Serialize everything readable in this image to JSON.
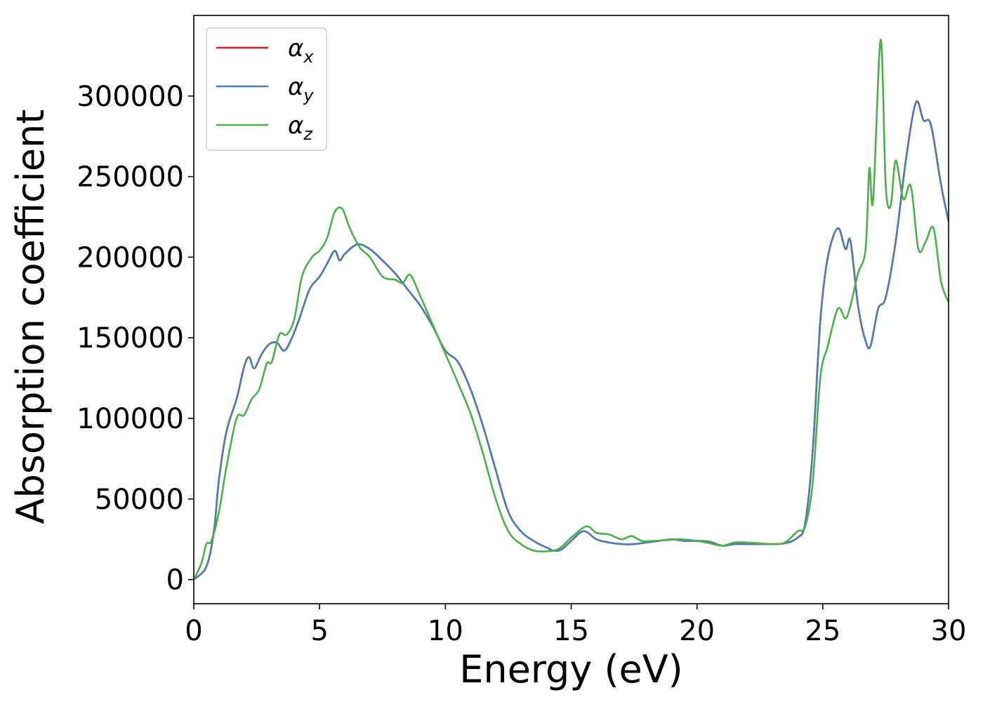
{
  "chart_data": {
    "type": "line",
    "title": "",
    "xlabel": "Energy (eV)",
    "ylabel": "Absorption coefficient",
    "xlim": [
      0,
      30
    ],
    "ylim": [
      -15000,
      350000
    ],
    "xticks": [
      0,
      5,
      10,
      15,
      20,
      25,
      30
    ],
    "yticks": [
      0,
      50000,
      100000,
      150000,
      200000,
      250000,
      300000
    ],
    "grid": false,
    "legend_position": "top-left",
    "series": [
      {
        "name": "αx",
        "legend_symbol": "α",
        "legend_subscript": "x",
        "color": "#e41a1c",
        "x": [
          0,
          0.5,
          0.8,
          1.0,
          1.3,
          1.7,
          2.0,
          2.2,
          2.4,
          2.7,
          3.0,
          3.3,
          3.6,
          3.9,
          4.2,
          4.6,
          5.0,
          5.3,
          5.6,
          5.8,
          6.0,
          6.5,
          7.0,
          7.5,
          8.0,
          8.5,
          9.0,
          9.5,
          10.0,
          10.5,
          11.0,
          11.5,
          12.0,
          12.5,
          13.0,
          13.5,
          14.0,
          14.3,
          14.6,
          15.0,
          15.5,
          16.0,
          16.5,
          17.0,
          17.5,
          18.0,
          18.5,
          19.0,
          19.5,
          20.0,
          20.5,
          21.0,
          21.5,
          22.0,
          22.5,
          23.0,
          23.5,
          24.0,
          24.3,
          24.6,
          24.9,
          25.2,
          25.6,
          25.9,
          26.1,
          26.4,
          26.7,
          26.9,
          27.2,
          27.5,
          27.9,
          28.3,
          28.7,
          29.0,
          29.3,
          29.7,
          30.0
        ],
        "values": [
          0,
          8000,
          30000,
          62000,
          92000,
          112000,
          132000,
          138000,
          131000,
          140000,
          146000,
          147000,
          142000,
          150000,
          162000,
          180000,
          188000,
          196000,
          204000,
          198000,
          202000,
          208000,
          205000,
          198000,
          190000,
          180000,
          170000,
          157000,
          142000,
          135000,
          118000,
          95000,
          68000,
          42000,
          30000,
          24000,
          20000,
          18000,
          18500,
          24000,
          30000,
          25000,
          23000,
          22000,
          22000,
          23000,
          24000,
          25000,
          24000,
          24000,
          23500,
          21000,
          22000,
          22000,
          22000,
          22000,
          22500,
          26000,
          35000,
          80000,
          160000,
          200000,
          218000,
          205000,
          210000,
          170000,
          148000,
          145000,
          168000,
          175000,
          210000,
          260000,
          296000,
          285000,
          282000,
          245000,
          222000
        ]
      },
      {
        "name": "αy",
        "legend_symbol": "α",
        "legend_subscript": "y",
        "color": "#4a7eb5",
        "x": [
          0,
          0.5,
          0.8,
          1.0,
          1.3,
          1.7,
          2.0,
          2.2,
          2.4,
          2.7,
          3.0,
          3.3,
          3.6,
          3.9,
          4.2,
          4.6,
          5.0,
          5.3,
          5.6,
          5.8,
          6.0,
          6.5,
          7.0,
          7.5,
          8.0,
          8.5,
          9.0,
          9.5,
          10.0,
          10.5,
          11.0,
          11.5,
          12.0,
          12.5,
          13.0,
          13.5,
          14.0,
          14.3,
          14.6,
          15.0,
          15.5,
          16.0,
          16.5,
          17.0,
          17.5,
          18.0,
          18.5,
          19.0,
          19.5,
          20.0,
          20.5,
          21.0,
          21.5,
          22.0,
          22.5,
          23.0,
          23.5,
          24.0,
          24.3,
          24.6,
          24.9,
          25.2,
          25.6,
          25.9,
          26.1,
          26.4,
          26.7,
          26.9,
          27.2,
          27.5,
          27.9,
          28.3,
          28.7,
          29.0,
          29.3,
          29.7,
          30.0
        ],
        "values": [
          0,
          8000,
          30000,
          62000,
          92000,
          112000,
          132000,
          138000,
          131000,
          140000,
          146000,
          147000,
          142000,
          150000,
          162000,
          180000,
          188000,
          196000,
          204000,
          198000,
          202000,
          208000,
          205000,
          198000,
          190000,
          180000,
          170000,
          157000,
          142000,
          135000,
          118000,
          95000,
          68000,
          42000,
          30000,
          24000,
          20000,
          18000,
          18500,
          24000,
          30000,
          25000,
          23000,
          22000,
          22000,
          23000,
          24000,
          25000,
          24000,
          24000,
          23500,
          21000,
          22000,
          22000,
          22000,
          22000,
          22500,
          26000,
          35000,
          80000,
          160000,
          200000,
          218000,
          205000,
          210000,
          170000,
          148000,
          145000,
          168000,
          175000,
          210000,
          260000,
          296000,
          285000,
          282000,
          245000,
          222000
        ]
      },
      {
        "name": "αz",
        "legend_symbol": "α",
        "legend_subscript": "z",
        "color": "#4daf4a",
        "x": [
          0,
          0.3,
          0.5,
          0.7,
          1.0,
          1.3,
          1.7,
          2.0,
          2.3,
          2.6,
          2.9,
          3.1,
          3.4,
          3.7,
          4.0,
          4.3,
          4.7,
          5.0,
          5.3,
          5.6,
          5.9,
          6.2,
          6.6,
          7.0,
          7.5,
          8.0,
          8.3,
          8.6,
          9.0,
          9.5,
          10.0,
          10.5,
          11.0,
          11.5,
          12.0,
          12.5,
          13.0,
          13.5,
          14.0,
          14.5,
          15.0,
          15.6,
          16.0,
          16.5,
          17.0,
          17.4,
          17.8,
          18.3,
          18.8,
          19.3,
          20.0,
          20.5,
          21.0,
          21.5,
          22.0,
          22.5,
          23.0,
          23.5,
          24.0,
          24.3,
          24.6,
          24.9,
          25.2,
          25.6,
          25.9,
          26.1,
          26.4,
          26.7,
          26.85,
          27.0,
          27.3,
          27.5,
          27.7,
          27.9,
          28.2,
          28.5,
          28.8,
          29.1,
          29.4,
          29.7,
          30.0
        ],
        "values": [
          0,
          10000,
          22000,
          24000,
          42000,
          70000,
          100000,
          102000,
          112000,
          118000,
          134000,
          135000,
          152000,
          152000,
          162000,
          188000,
          200000,
          204000,
          212000,
          228000,
          230000,
          218000,
          206000,
          200000,
          188000,
          186000,
          184000,
          189000,
          176000,
          158000,
          140000,
          122000,
          103000,
          78000,
          50000,
          30000,
          22000,
          18000,
          17500,
          19000,
          26000,
          33000,
          29000,
          28000,
          25000,
          27000,
          24000,
          24000,
          24500,
          25000,
          24000,
          22500,
          21000,
          23000,
          23000,
          22500,
          22000,
          23000,
          30000,
          33000,
          60000,
          125000,
          145000,
          168000,
          162000,
          170000,
          190000,
          205000,
          255000,
          235000,
          335000,
          245000,
          232000,
          260000,
          236000,
          244000,
          205000,
          210000,
          218000,
          185000,
          172000
        ]
      }
    ]
  }
}
